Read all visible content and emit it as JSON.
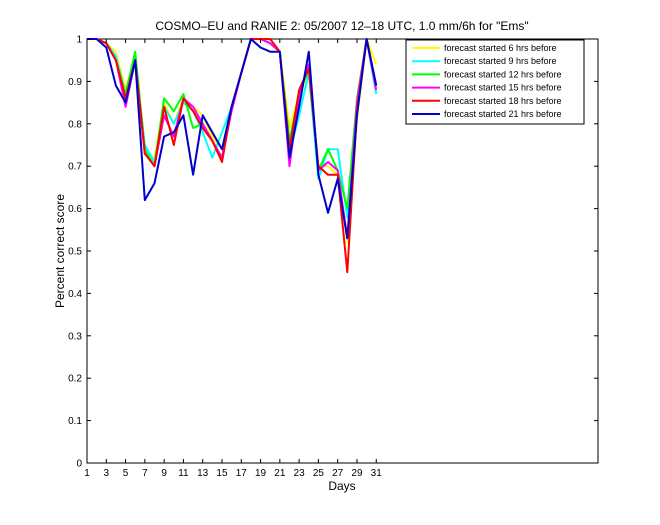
{
  "chart_data": {
    "type": "line",
    "title": "COSMO–EU and RANIE 2: 05/2007 12–18 UTC, 1.0 mm/6h for \"Ems\"",
    "xlabel": "Days",
    "ylabel": "Percent correct score",
    "xlim": [
      1,
      54
    ],
    "ylim": [
      0,
      1
    ],
    "xticks": [
      1,
      3,
      5,
      7,
      9,
      11,
      13,
      15,
      17,
      19,
      21,
      23,
      25,
      27,
      29,
      31
    ],
    "yticks": [
      0,
      0.1,
      0.2,
      0.3,
      0.4,
      0.5,
      0.6,
      0.7,
      0.8,
      0.9,
      1
    ],
    "ytick_labels": [
      "0",
      "0.1",
      "0.2",
      "0.3",
      "0.4",
      "0.5",
      "0.6",
      "0.7",
      "0.8",
      "0.9",
      "1"
    ],
    "grid": false,
    "legend_position": "top-right",
    "x": [
      1,
      2,
      3,
      4,
      5,
      6,
      7,
      8,
      9,
      10,
      11,
      12,
      13,
      14,
      15,
      16,
      17,
      18,
      19,
      20,
      21,
      22,
      23,
      24,
      25,
      26,
      27,
      28,
      29,
      30,
      31
    ],
    "series": [
      {
        "name": "forecast started 6 hrs before",
        "color": "#ffff00",
        "values": [
          1,
          1,
          0.99,
          0.97,
          0.88,
          0.96,
          0.73,
          0.72,
          0.85,
          0.8,
          0.86,
          0.84,
          0.82,
          0.77,
          0.74,
          0.84,
          0.92,
          1,
          1,
          0.99,
          0.97,
          0.79,
          0.87,
          0.92,
          0.7,
          0.7,
          0.68,
          0.52,
          0.81,
          1,
          0.94
        ]
      },
      {
        "name": "forecast started 9 hrs before",
        "color": "#00ffff",
        "values": [
          1,
          1,
          0.99,
          0.96,
          0.87,
          0.95,
          0.75,
          0.71,
          0.84,
          0.8,
          0.85,
          0.83,
          0.78,
          0.72,
          0.78,
          0.84,
          0.92,
          1,
          1,
          0.99,
          0.97,
          0.73,
          0.82,
          0.92,
          0.67,
          0.74,
          0.74,
          0.58,
          0.84,
          1,
          0.87
        ]
      },
      {
        "name": "forecast started 12 hrs before",
        "color": "#00ff00",
        "values": [
          1,
          1,
          0.99,
          0.95,
          0.87,
          0.97,
          0.74,
          0.7,
          0.86,
          0.83,
          0.87,
          0.79,
          0.8,
          0.76,
          0.72,
          0.84,
          0.92,
          1,
          1,
          0.99,
          0.97,
          0.76,
          0.87,
          0.93,
          0.69,
          0.74,
          0.69,
          0.6,
          0.86,
          1,
          0.89
        ]
      },
      {
        "name": "forecast started 15 hrs before",
        "color": "#ff00ff",
        "values": [
          1,
          1,
          0.99,
          0.95,
          0.84,
          0.95,
          0.73,
          0.7,
          0.82,
          0.77,
          0.86,
          0.84,
          0.8,
          0.76,
          0.72,
          0.83,
          0.92,
          1,
          1,
          0.99,
          0.97,
          0.7,
          0.87,
          0.94,
          0.69,
          0.71,
          0.69,
          0.53,
          0.85,
          1,
          0.88
        ]
      },
      {
        "name": "forecast started 18 hrs before",
        "color": "#ff0000",
        "values": [
          1,
          1,
          0.99,
          0.95,
          0.86,
          0.95,
          0.73,
          0.7,
          0.84,
          0.75,
          0.86,
          0.83,
          0.79,
          0.76,
          0.71,
          0.84,
          0.92,
          1,
          1,
          1,
          0.97,
          0.74,
          0.88,
          0.93,
          0.7,
          0.68,
          0.68,
          0.45,
          0.83,
          1,
          0.89
        ]
      },
      {
        "name": "forecast started 21 hrs before",
        "color": "#0000cc",
        "values": [
          1,
          1,
          0.98,
          0.89,
          0.85,
          0.95,
          0.62,
          0.66,
          0.77,
          0.78,
          0.82,
          0.68,
          0.82,
          0.78,
          0.74,
          0.84,
          0.92,
          1,
          0.98,
          0.97,
          0.97,
          0.72,
          0.84,
          0.97,
          0.68,
          0.59,
          0.67,
          0.53,
          0.82,
          1,
          0.89
        ]
      }
    ]
  }
}
